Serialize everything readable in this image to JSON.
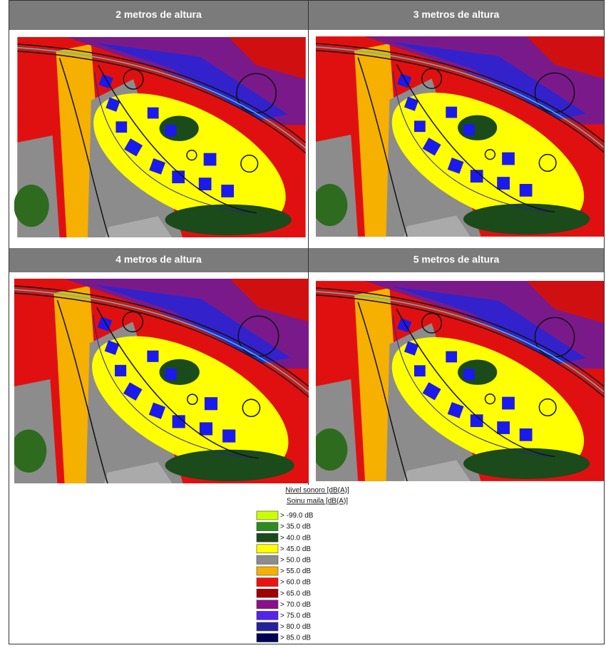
{
  "panels": [
    {
      "title": "2 metros de altura"
    },
    {
      "title": "3 metros de altura"
    },
    {
      "title": "4 metros de altura"
    },
    {
      "title": "5 metros de altura"
    }
  ],
  "legend": {
    "title": "Nivel sonoro [dB(A)]",
    "subtitle": "Soinu maila [dB(A)]",
    "items": [
      {
        "label": "> -99.0 dB",
        "color": "#ccff00"
      },
      {
        "label": ">  35.0 dB",
        "color": "#2e8b1e"
      },
      {
        "label": ">  40.0 dB",
        "color": "#1b4a1b"
      },
      {
        "label": ">  45.0 dB",
        "color": "#ffff00"
      },
      {
        "label": ">  50.0 dB",
        "color": "#8c8c8c"
      },
      {
        "label": ">  55.0 dB",
        "color": "#f5b000"
      },
      {
        "label": ">  60.0 dB",
        "color": "#ee1111"
      },
      {
        "label": ">  65.0 dB",
        "color": "#a00000"
      },
      {
        "label": ">  70.0 dB",
        "color": "#8b108b"
      },
      {
        "label": ">  75.0 dB",
        "color": "#5522ee"
      },
      {
        "label": ">  80.0 dB",
        "color": "#22229a"
      },
      {
        "label": ">  85.0 dB",
        "color": "#000055"
      }
    ]
  }
}
